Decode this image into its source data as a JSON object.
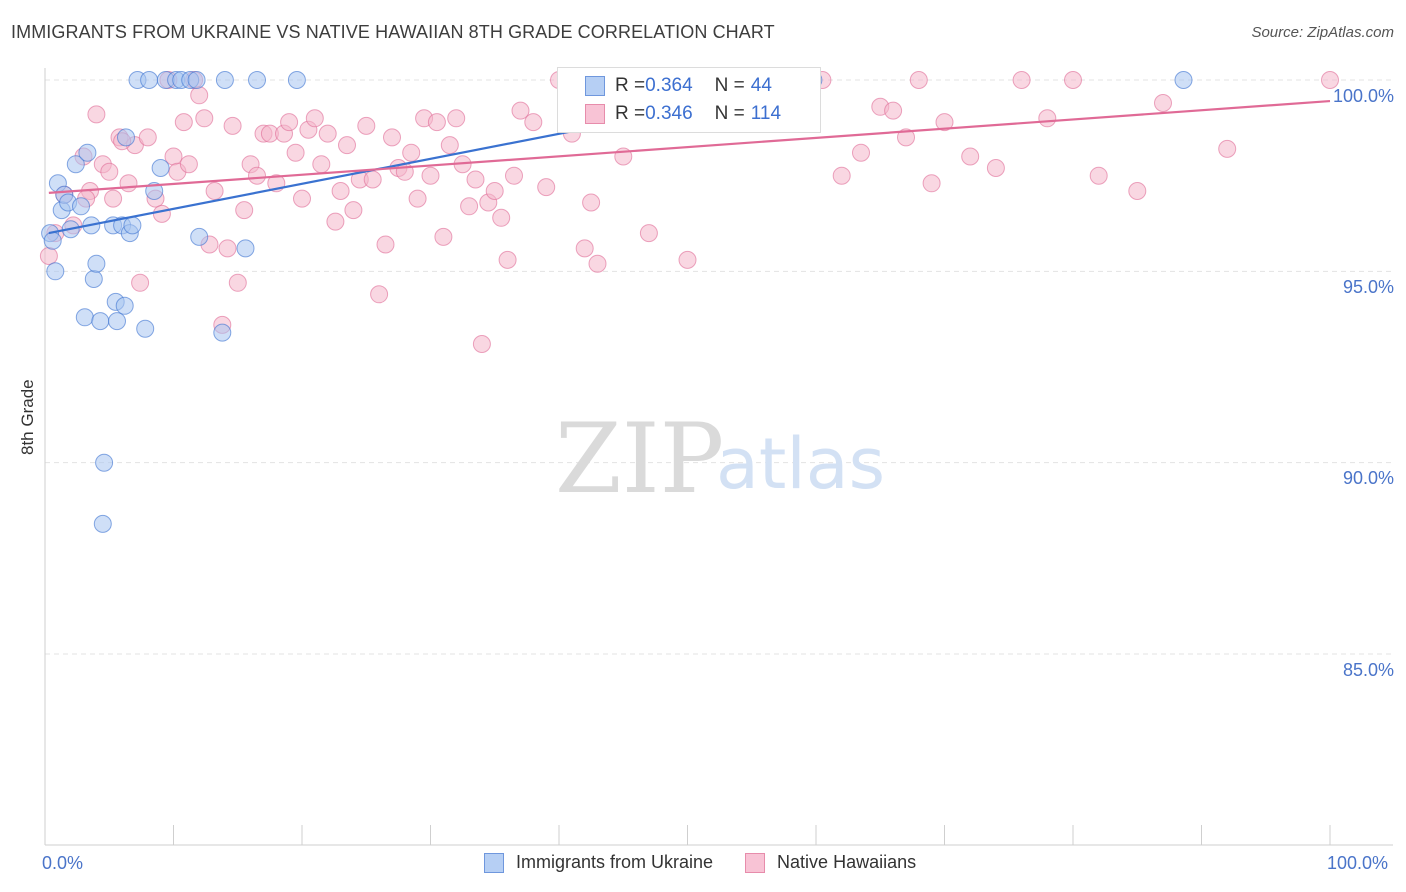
{
  "title": "IMMIGRANTS FROM UKRAINE VS NATIVE HAWAIIAN 8TH GRADE CORRELATION CHART",
  "source": "Source: ZipAtlas.com",
  "watermark": {
    "zip": "ZIP",
    "atlas": "atlas"
  },
  "colors": {
    "blue": "#3a72d0",
    "blue_fill": "#a7c4f0",
    "pink": "#e06a96",
    "pink_fill": "#f4b6cb",
    "tick_text": "#4a74c9",
    "grid": "#e3e3e3"
  },
  "legend_top": {
    "rows": [
      {
        "r_label": "R = ",
        "r_value": "0.364",
        "n_label": "N = ",
        "n_value": "44"
      },
      {
        "r_label": "R = ",
        "r_value": "0.346",
        "n_label": "N = ",
        "n_value": "114"
      }
    ]
  },
  "legend_bottom": [
    "Immigrants from Ukraine",
    "Native Hawaiians"
  ],
  "chart_data": {
    "type": "scatter",
    "title": "IMMIGRANTS FROM UKRAINE VS NATIVE HAWAIIAN 8TH GRADE CORRELATION CHART",
    "xlabel": "",
    "ylabel": "8th Grade",
    "xlim": [
      0,
      100
    ],
    "ylim": [
      80.5,
      100.6
    ],
    "x_tick_labels": [
      "0.0%",
      "100.0%"
    ],
    "y_ticks": [
      85,
      90,
      95,
      100
    ],
    "y_tick_labels": [
      "85.0%",
      "90.0%",
      "95.0%",
      "100.0%"
    ],
    "grid": true,
    "series": [
      {
        "name": "Immigrants from Ukraine",
        "color": "blue",
        "R": 0.364,
        "N": 44,
        "trend": {
          "x": [
            0.3,
            60.0
          ],
          "y": [
            96.0,
            99.9
          ]
        },
        "points": [
          [
            0.4,
            96.0
          ],
          [
            0.6,
            95.8
          ],
          [
            0.8,
            95.0
          ],
          [
            1.0,
            97.3
          ],
          [
            1.3,
            96.6
          ],
          [
            1.5,
            97.0
          ],
          [
            1.8,
            96.8
          ],
          [
            2.0,
            96.1
          ],
          [
            2.4,
            97.8
          ],
          [
            2.8,
            96.7
          ],
          [
            3.1,
            93.8
          ],
          [
            3.3,
            98.1
          ],
          [
            3.6,
            96.2
          ],
          [
            3.8,
            94.8
          ],
          [
            4.0,
            95.2
          ],
          [
            4.3,
            93.7
          ],
          [
            4.6,
            90.0
          ],
          [
            4.5,
            88.4
          ],
          [
            5.3,
            96.2
          ],
          [
            5.5,
            94.2
          ],
          [
            5.6,
            93.7
          ],
          [
            6.0,
            96.2
          ],
          [
            6.2,
            94.1
          ],
          [
            6.3,
            98.5
          ],
          [
            6.6,
            96.0
          ],
          [
            6.8,
            96.2
          ],
          [
            7.2,
            100.0
          ],
          [
            7.8,
            93.5
          ],
          [
            8.1,
            100.0
          ],
          [
            8.5,
            97.1
          ],
          [
            9.0,
            97.7
          ],
          [
            9.4,
            100.0
          ],
          [
            10.2,
            100.0
          ],
          [
            10.6,
            100.0
          ],
          [
            11.3,
            100.0
          ],
          [
            11.8,
            100.0
          ],
          [
            12.0,
            95.9
          ],
          [
            13.8,
            93.4
          ],
          [
            14.0,
            100.0
          ],
          [
            15.6,
            95.6
          ],
          [
            16.5,
            100.0
          ],
          [
            19.6,
            100.0
          ],
          [
            59.8,
            100.0
          ],
          [
            88.6,
            100.0
          ]
        ]
      },
      {
        "name": "Native Hawaiians",
        "color": "pink",
        "R": 0.346,
        "N": 114,
        "trend": {
          "x": [
            0.3,
            100.0
          ],
          "y": [
            97.05,
            99.45
          ]
        },
        "points": [
          [
            0.3,
            95.4
          ],
          [
            0.8,
            96.0
          ],
          [
            1.5,
            97.0
          ],
          [
            2.2,
            96.2
          ],
          [
            3.0,
            98.0
          ],
          [
            3.5,
            97.1
          ],
          [
            4.0,
            99.1
          ],
          [
            4.5,
            97.8
          ],
          [
            5.0,
            97.6
          ],
          [
            5.3,
            96.9
          ],
          [
            5.8,
            98.5
          ],
          [
            6.5,
            97.3
          ],
          [
            7.0,
            98.3
          ],
          [
            7.4,
            94.7
          ],
          [
            8.0,
            98.5
          ],
          [
            8.6,
            96.9
          ],
          [
            9.1,
            96.5
          ],
          [
            9.6,
            100.0
          ],
          [
            10.0,
            98.0
          ],
          [
            10.3,
            97.6
          ],
          [
            10.8,
            98.9
          ],
          [
            11.2,
            97.8
          ],
          [
            11.6,
            100.0
          ],
          [
            12.0,
            99.6
          ],
          [
            12.4,
            99.0
          ],
          [
            12.8,
            95.7
          ],
          [
            13.2,
            97.1
          ],
          [
            13.8,
            93.6
          ],
          [
            14.2,
            95.6
          ],
          [
            14.6,
            98.8
          ],
          [
            15.0,
            94.7
          ],
          [
            15.5,
            96.6
          ],
          [
            16.0,
            97.8
          ],
          [
            16.5,
            97.5
          ],
          [
            17.0,
            98.6
          ],
          [
            17.5,
            98.6
          ],
          [
            18.0,
            97.3
          ],
          [
            18.6,
            98.6
          ],
          [
            19.0,
            98.9
          ],
          [
            19.5,
            98.1
          ],
          [
            20.0,
            96.9
          ],
          [
            20.5,
            98.7
          ],
          [
            21.0,
            99.0
          ],
          [
            21.5,
            97.8
          ],
          [
            22.0,
            98.6
          ],
          [
            22.6,
            96.3
          ],
          [
            23.0,
            97.1
          ],
          [
            23.5,
            98.3
          ],
          [
            24.0,
            96.6
          ],
          [
            24.5,
            97.4
          ],
          [
            25.0,
            98.8
          ],
          [
            25.5,
            97.4
          ],
          [
            26.0,
            94.4
          ],
          [
            26.5,
            95.7
          ],
          [
            27.0,
            98.5
          ],
          [
            27.5,
            97.7
          ],
          [
            28.0,
            97.6
          ],
          [
            28.5,
            98.1
          ],
          [
            29.0,
            96.9
          ],
          [
            29.5,
            99.0
          ],
          [
            30.0,
            97.5
          ],
          [
            30.5,
            98.9
          ],
          [
            31.0,
            95.9
          ],
          [
            31.5,
            98.3
          ],
          [
            32.0,
            99.0
          ],
          [
            32.5,
            97.8
          ],
          [
            33.0,
            96.7
          ],
          [
            33.5,
            97.4
          ],
          [
            34.0,
            93.1
          ],
          [
            34.5,
            96.8
          ],
          [
            35.0,
            97.1
          ],
          [
            35.5,
            96.4
          ],
          [
            36.0,
            95.3
          ],
          [
            36.5,
            97.5
          ],
          [
            37.0,
            99.2
          ],
          [
            38.0,
            98.9
          ],
          [
            39.0,
            97.2
          ],
          [
            40.0,
            100.0
          ],
          [
            41.0,
            98.6
          ],
          [
            42.0,
            95.6
          ],
          [
            42.5,
            96.8
          ],
          [
            43.0,
            95.2
          ],
          [
            44.0,
            99.2
          ],
          [
            45.0,
            98.0
          ],
          [
            45.5,
            98.9
          ],
          [
            46.0,
            100.0
          ],
          [
            47.0,
            96.0
          ],
          [
            49.0,
            100.0
          ],
          [
            50.0,
            95.3
          ],
          [
            52.0,
            99.0
          ],
          [
            55.0,
            99.3
          ],
          [
            57.0,
            100.0
          ],
          [
            59.0,
            99.9
          ],
          [
            60.5,
            100.0
          ],
          [
            62.0,
            97.5
          ],
          [
            63.5,
            98.1
          ],
          [
            65.0,
            99.3
          ],
          [
            66.0,
            99.2
          ],
          [
            67.0,
            98.5
          ],
          [
            68.0,
            100.0
          ],
          [
            69.0,
            97.3
          ],
          [
            70.0,
            98.9
          ],
          [
            72.0,
            98.0
          ],
          [
            74.0,
            97.7
          ],
          [
            76.0,
            100.0
          ],
          [
            78.0,
            99.0
          ],
          [
            80.0,
            100.0
          ],
          [
            82.0,
            97.5
          ],
          [
            85.0,
            97.1
          ],
          [
            87.0,
            99.4
          ],
          [
            92.0,
            98.2
          ],
          [
            100.0,
            100.0
          ],
          [
            6.0,
            98.4
          ],
          [
            3.2,
            96.9
          ]
        ]
      }
    ]
  }
}
